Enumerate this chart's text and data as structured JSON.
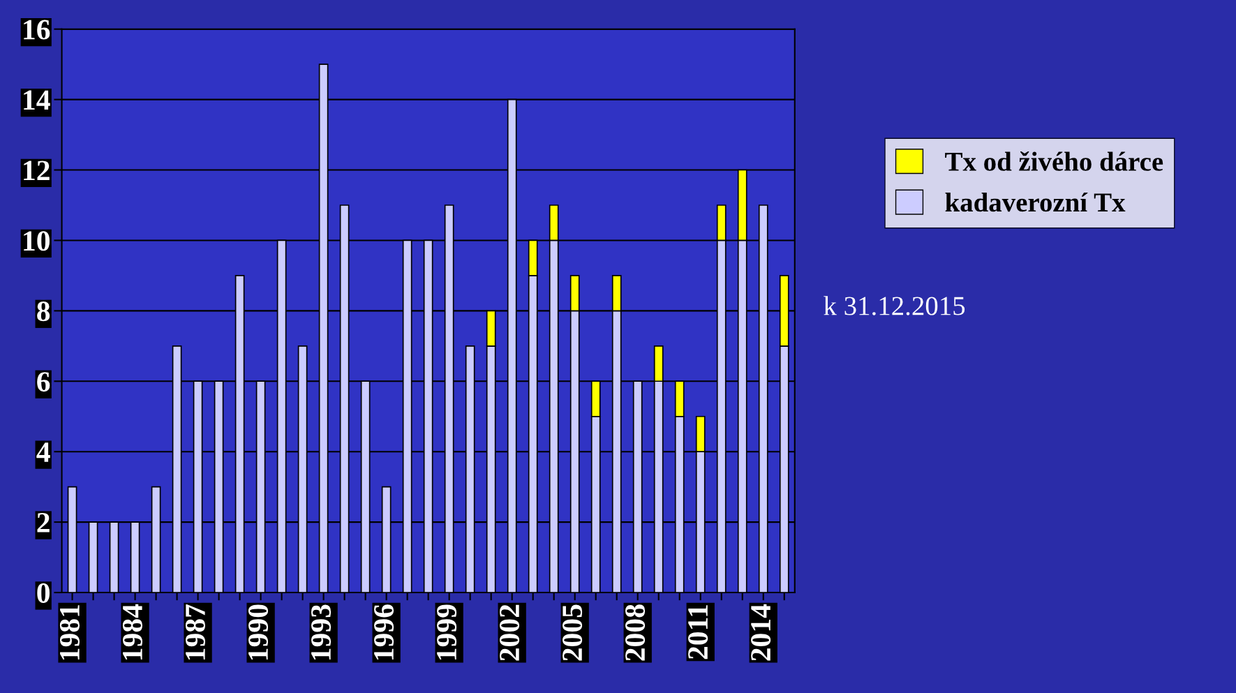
{
  "chart_data": {
    "type": "bar",
    "stacked": true,
    "categories": [
      "1981",
      null,
      null,
      "1984",
      null,
      null,
      "1987",
      null,
      null,
      "1990",
      null,
      null,
      "1993",
      null,
      null,
      "1996",
      null,
      null,
      "1999",
      null,
      null,
      "2002",
      null,
      null,
      "2005",
      null,
      null,
      "2008",
      null,
      null,
      "2011",
      null,
      null,
      "2014",
      null
    ],
    "series": [
      {
        "name": "kadaverozní Tx",
        "color": "#ccccff",
        "values": [
          3,
          2,
          2,
          2,
          3,
          7,
          6,
          6,
          9,
          6,
          10,
          7,
          15,
          11,
          6,
          3,
          10,
          10,
          11,
          7,
          7,
          14,
          9,
          10,
          8,
          5,
          8,
          6,
          6,
          5,
          4,
          10,
          10,
          11,
          7
        ]
      },
      {
        "name": "Tx od živého dárce",
        "color": "#ffff00",
        "values": [
          null,
          null,
          null,
          null,
          null,
          null,
          null,
          null,
          null,
          null,
          null,
          null,
          null,
          null,
          null,
          null,
          null,
          null,
          null,
          null,
          1,
          null,
          1,
          1,
          1,
          1,
          1,
          null,
          1,
          1,
          1,
          1,
          2,
          null,
          2
        ]
      }
    ],
    "ylim": [
      0,
      16
    ],
    "yticks": [
      0,
      2,
      4,
      6,
      8,
      10,
      12,
      14,
      16
    ],
    "grid": "y",
    "legend": "top right",
    "annotations": [
      "k 31.12.2015"
    ]
  }
}
